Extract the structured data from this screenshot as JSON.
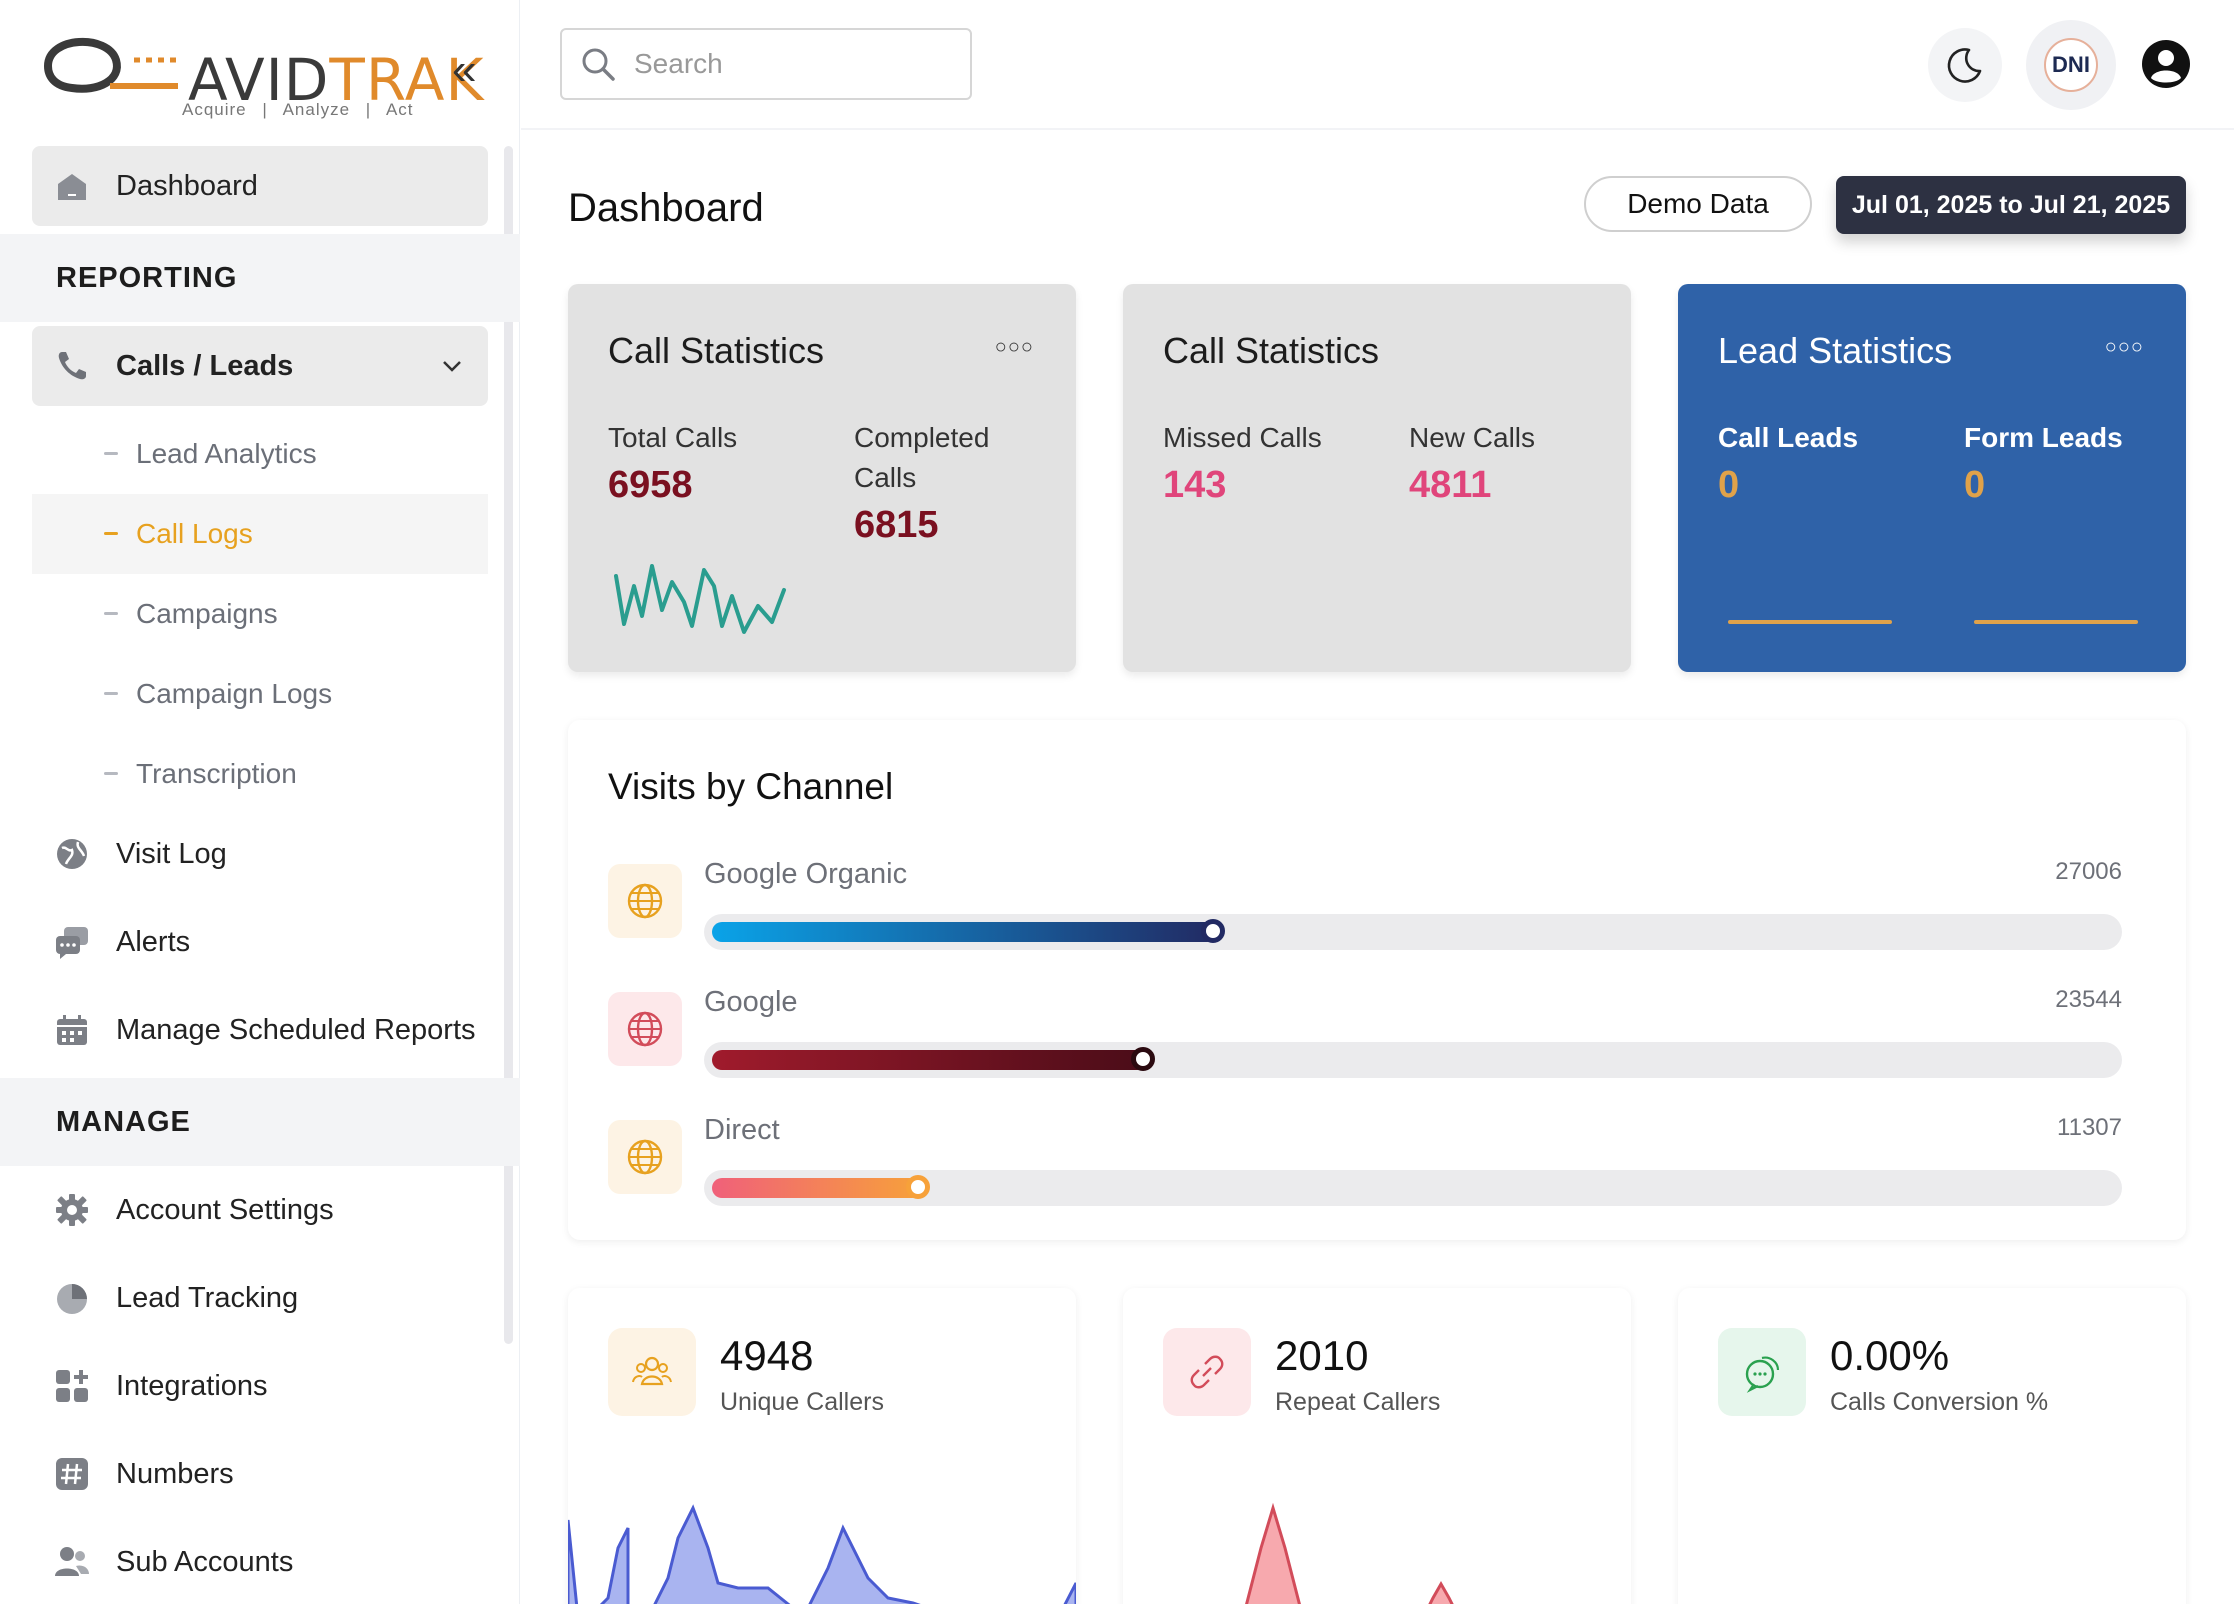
{
  "brand": {
    "name_left": "AVID",
    "name_right": "TRAK",
    "tagline": "Acquire | Analyze | Act"
  },
  "sidebar": {
    "dashboard": "Dashboard",
    "section_reporting": "REPORTING",
    "calls_leads": "Calls / Leads",
    "sub_items": [
      "Lead Analytics",
      "Call Logs",
      "Campaigns",
      "Campaign Logs",
      "Transcription"
    ],
    "visit_log": "Visit Log",
    "alerts": "Alerts",
    "manage_scheduled_reports": "Manage Scheduled Reports",
    "section_manage": "MANAGE",
    "account_settings": "Account Settings",
    "lead_tracking": "Lead Tracking",
    "integrations": "Integrations",
    "numbers": "Numbers",
    "sub_accounts": "Sub Accounts"
  },
  "topbar": {
    "search_placeholder": "Search",
    "dni_label": "DNI"
  },
  "main": {
    "page_title": "Dashboard",
    "demo_button": "Demo Data",
    "date_range": "Jul 01, 2025 to Jul 21, 2025",
    "cards": [
      {
        "title": "Call Statistics",
        "stat1_label": "Total Calls",
        "stat1_value": "6958",
        "stat2_label_line1": "Completed",
        "stat2_label_line2": "Calls",
        "stat2_value": "6815"
      },
      {
        "title": "Call Statistics",
        "stat1_label": "Missed Calls",
        "stat1_value": "143",
        "stat2_label": "New Calls",
        "stat2_value": "4811"
      },
      {
        "title": "Lead Statistics",
        "stat1_label": "Call Leads",
        "stat1_value": "0",
        "stat2_label": "Form Leads",
        "stat2_value": "0"
      }
    ],
    "visits_by_channel": {
      "title": "Visits by Channel",
      "channels": [
        {
          "name": "Google Organic",
          "value": "27006",
          "fill_fraction": 0.36
        },
        {
          "name": "Google",
          "value": "23544",
          "fill_fraction": 0.31
        },
        {
          "name": "Direct",
          "value": "11307",
          "fill_fraction": 0.15
        }
      ]
    },
    "summary": [
      {
        "value": "4948",
        "label": "Unique Callers"
      },
      {
        "value": "2010",
        "label": "Repeat Callers"
      },
      {
        "value": "0.00%",
        "label": "Calls Conversion %"
      }
    ]
  },
  "colors": {
    "accent_orange": "#e7a11f",
    "dark_red": "#7a1020",
    "pink": "#e0457b",
    "lead_card_blue": "#2f62a8",
    "date_button": "#2d3142"
  }
}
